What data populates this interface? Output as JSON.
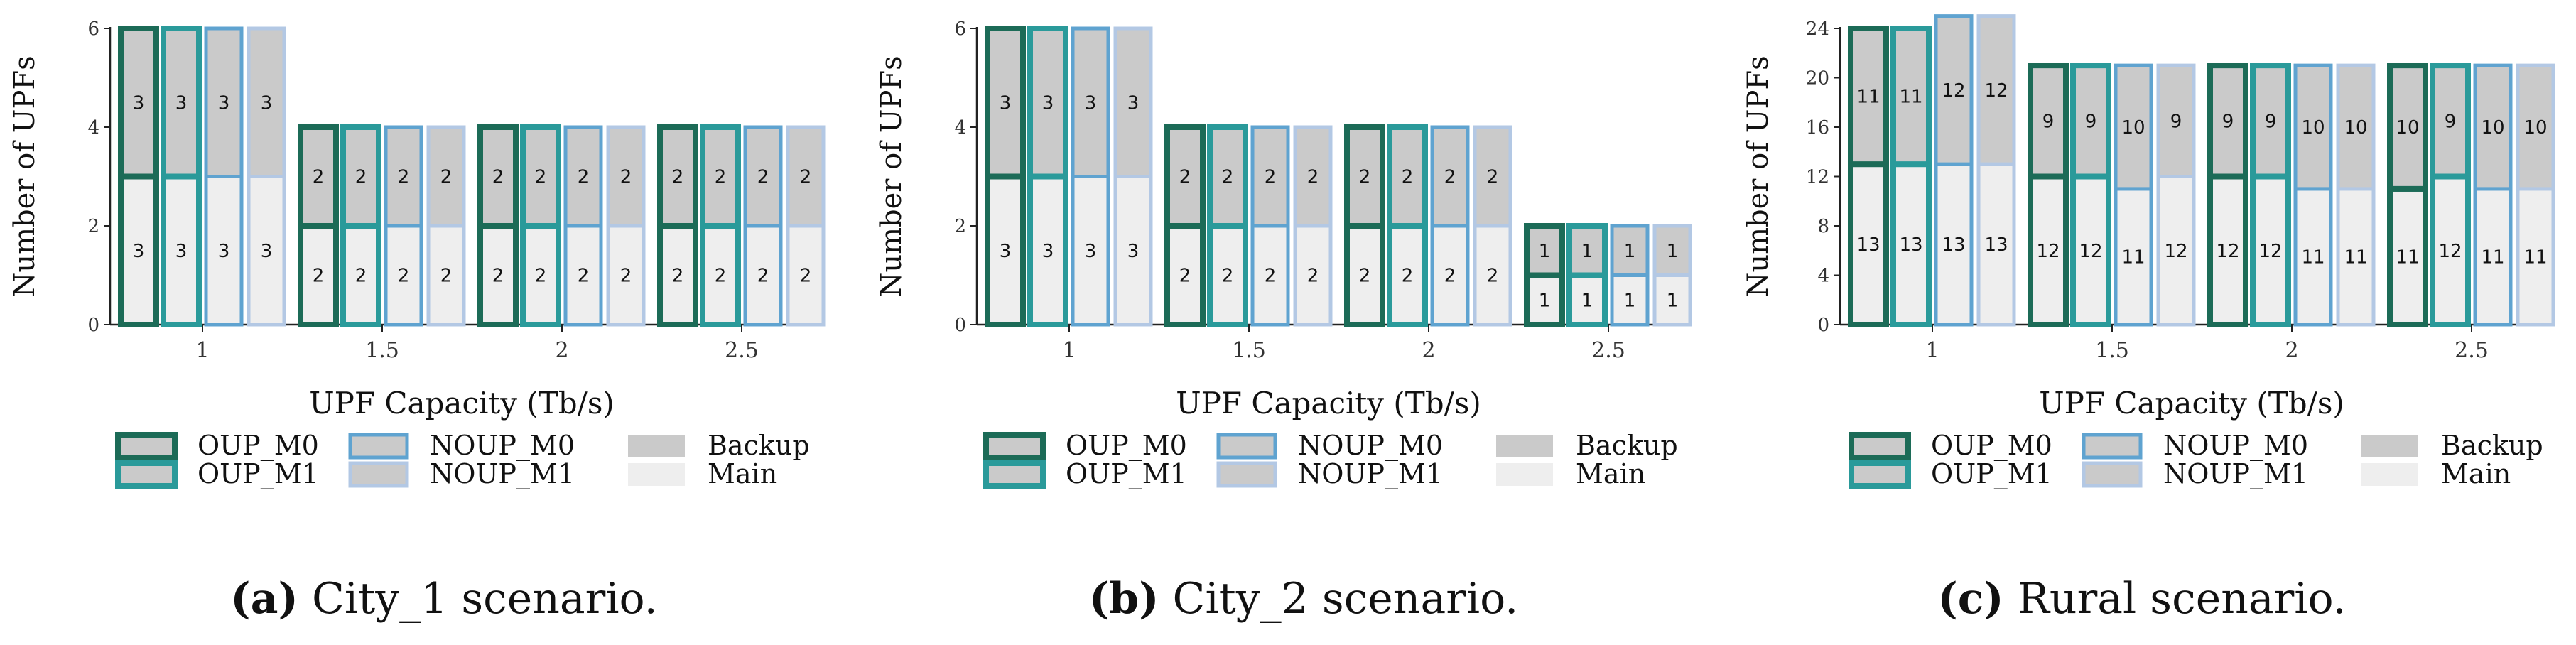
{
  "colors": {
    "OUP_M0": "#1c6b57",
    "OUP_M1": "#2a9a9a",
    "NOUP_M0": "#5fa3d0",
    "NOUP_M1": "#b3c8e4",
    "backup_fill": "#cacaca",
    "main_fill": "#eeeeee"
  },
  "legend": {
    "oup_m0": "OUP_M0",
    "oup_m1": "OUP_M1",
    "noup_m0": "NOUP_M0",
    "noup_m1": "NOUP_M1",
    "backup": "Backup",
    "main": "Main"
  },
  "chart_data": [
    {
      "type": "bar",
      "stacked": true,
      "xlabel": "UPF Capacity (Tb/s)",
      "ylabel": "Number of UPFs",
      "ylim": [
        0,
        6
      ],
      "yticks": [
        0,
        2,
        4,
        6
      ],
      "categories": [
        "1",
        "1.5",
        "2",
        "2.5"
      ],
      "series": [
        {
          "name": "OUP_M0",
          "main": [
            3,
            2,
            2,
            2
          ],
          "backup": [
            3,
            2,
            2,
            2
          ]
        },
        {
          "name": "OUP_M1",
          "main": [
            3,
            2,
            2,
            2
          ],
          "backup": [
            3,
            2,
            2,
            2
          ]
        },
        {
          "name": "NOUP_M0",
          "main": [
            3,
            2,
            2,
            2
          ],
          "backup": [
            3,
            2,
            2,
            2
          ]
        },
        {
          "name": "NOUP_M1",
          "main": [
            3,
            2,
            2,
            2
          ],
          "backup": [
            3,
            2,
            2,
            2
          ]
        }
      ],
      "caption_letter": "(a)",
      "caption_text": " City_1 scenario."
    },
    {
      "type": "bar",
      "stacked": true,
      "xlabel": "UPF Capacity (Tb/s)",
      "ylabel": "Number of UPFs",
      "ylim": [
        0,
        6
      ],
      "yticks": [
        0,
        2,
        4,
        6
      ],
      "categories": [
        "1",
        "1.5",
        "2",
        "2.5"
      ],
      "series": [
        {
          "name": "OUP_M0",
          "main": [
            3,
            2,
            2,
            1
          ],
          "backup": [
            3,
            2,
            2,
            1
          ]
        },
        {
          "name": "OUP_M1",
          "main": [
            3,
            2,
            2,
            1
          ],
          "backup": [
            3,
            2,
            2,
            1
          ]
        },
        {
          "name": "NOUP_M0",
          "main": [
            3,
            2,
            2,
            1
          ],
          "backup": [
            3,
            2,
            2,
            1
          ]
        },
        {
          "name": "NOUP_M1",
          "main": [
            3,
            2,
            2,
            1
          ],
          "backup": [
            3,
            2,
            2,
            1
          ]
        }
      ],
      "caption_letter": "(b)",
      "caption_text": " City_2 scenario."
    },
    {
      "type": "bar",
      "stacked": true,
      "xlabel": "UPF Capacity (Tb/s)",
      "ylabel": "Number of UPFs",
      "ylim": [
        0,
        24
      ],
      "yticks": [
        0,
        4,
        8,
        12,
        16,
        20,
        24
      ],
      "categories": [
        "1",
        "1.5",
        "2",
        "2.5"
      ],
      "series": [
        {
          "name": "OUP_M0",
          "main": [
            13,
            12,
            12,
            11
          ],
          "backup": [
            11,
            9,
            9,
            10
          ]
        },
        {
          "name": "OUP_M1",
          "main": [
            13,
            12,
            12,
            12
          ],
          "backup": [
            11,
            9,
            9,
            9
          ]
        },
        {
          "name": "NOUP_M0",
          "main": [
            13,
            11,
            11,
            11
          ],
          "backup": [
            12,
            10,
            10,
            10
          ]
        },
        {
          "name": "NOUP_M1",
          "main": [
            13,
            12,
            11,
            11
          ],
          "backup": [
            12,
            9,
            10,
            10
          ]
        }
      ],
      "caption_letter": "(c)",
      "caption_text": " Rural scenario."
    }
  ]
}
